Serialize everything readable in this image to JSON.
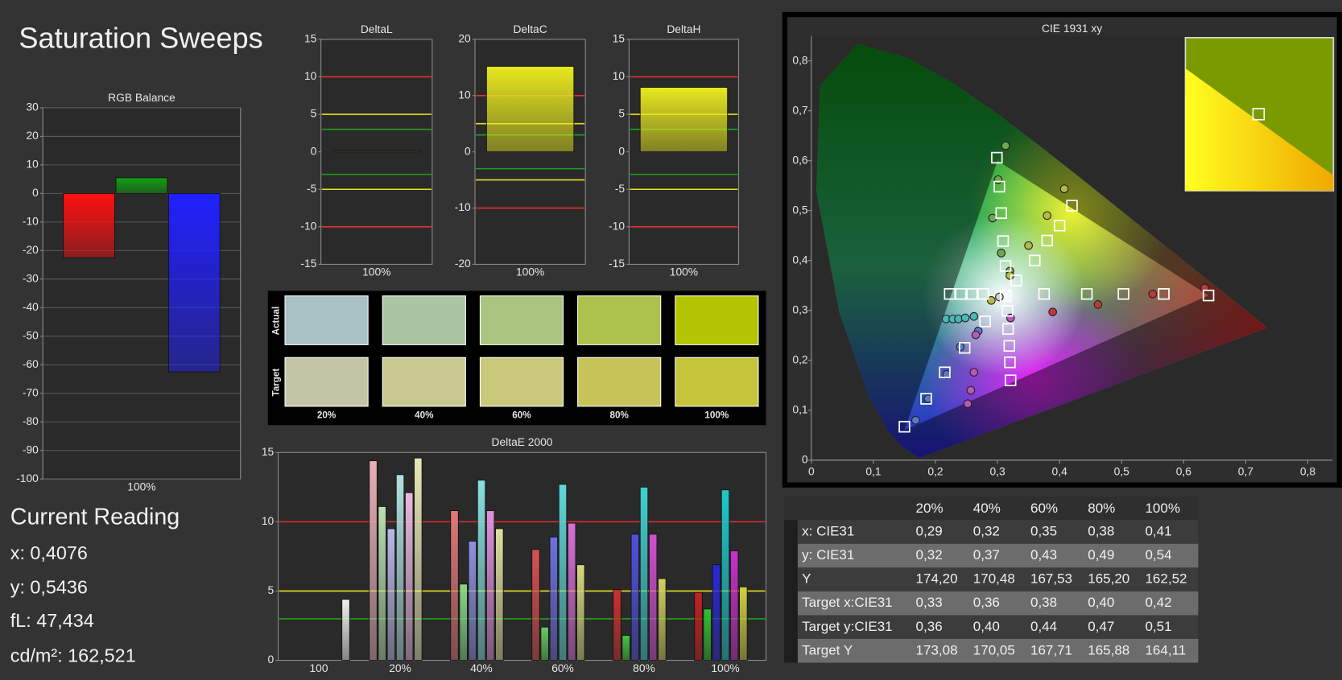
{
  "title": "Saturation Sweeps",
  "current_reading": {
    "title": "Current Reading",
    "lines": [
      "x: 0,4076",
      "y: 0,5436",
      "fL: 47,434",
      "cd/m²: 162,521"
    ]
  },
  "swatches": {
    "row_labels": [
      "Actual",
      "Target"
    ],
    "columns": [
      "20%",
      "40%",
      "60%",
      "80%",
      "100%"
    ],
    "actual_colors": [
      "#a9c0c4",
      "#a9c5a2",
      "#a9c47f",
      "#abc24c",
      "#b3c400"
    ],
    "target_colors": [
      "#c3c5a7",
      "#c9c991",
      "#c9c87b",
      "#c6c458",
      "#c6c43a"
    ]
  },
  "table": {
    "header": [
      "20%",
      "40%",
      "60%",
      "80%",
      "100%"
    ],
    "rows": [
      [
        "x: CIE31",
        "0,29",
        "0,32",
        "0,35",
        "0,38",
        "0,41"
      ],
      [
        "y: CIE31",
        "0,32",
        "0,37",
        "0,43",
        "0,49",
        "0,54"
      ],
      [
        "Y",
        "174,20",
        "170,48",
        "167,53",
        "165,20",
        "162,52"
      ],
      [
        "Target x:CIE31",
        "0,33",
        "0,36",
        "0,38",
        "0,40",
        "0,42"
      ],
      [
        "Target y:CIE31",
        "0,36",
        "0,40",
        "0,44",
        "0,47",
        "0,51"
      ],
      [
        "Target Y",
        "173,08",
        "170,05",
        "167,71",
        "165,88",
        "164,11"
      ]
    ]
  },
  "chart_data": [
    {
      "type": "bar",
      "title": "RGB Balance",
      "categories": [
        "100%"
      ],
      "series": [
        {
          "color": "#ff1010",
          "values": [
            -22.5
          ]
        },
        {
          "color": "#10a010",
          "values": [
            5.5
          ]
        },
        {
          "color": "#2020ff",
          "values": [
            -62.5
          ]
        }
      ],
      "ylim": [
        -100,
        30
      ],
      "yticks": [
        -100,
        -90,
        -80,
        -70,
        -60,
        -50,
        -40,
        -30,
        -20,
        -10,
        0,
        10,
        20,
        30
      ],
      "grid": true
    },
    {
      "type": "bar",
      "title": "DeltaL",
      "categories": [
        "100%"
      ],
      "values": [
        0.1
      ],
      "color": "#e8e820",
      "ylim": [
        -15,
        15
      ],
      "yticks": [
        -15,
        -10,
        -5,
        0,
        5,
        10,
        15
      ],
      "grid": false,
      "reference_lines": [
        {
          "value": 10,
          "color": "#e03030"
        },
        {
          "value": -10,
          "color": "#e03030"
        },
        {
          "value": 5,
          "color": "#e8e020"
        },
        {
          "value": -5,
          "color": "#e8e020"
        },
        {
          "value": 3,
          "color": "#20a020"
        },
        {
          "value": -3,
          "color": "#20a020"
        }
      ]
    },
    {
      "type": "bar",
      "title": "DeltaC",
      "categories": [
        "100%"
      ],
      "values": [
        15.2
      ],
      "color": "#e8e820",
      "ylim": [
        -20,
        20
      ],
      "yticks": [
        -20,
        -10,
        0,
        10,
        20
      ],
      "grid": false,
      "reference_lines": [
        {
          "value": 10,
          "color": "#e03030"
        },
        {
          "value": -10,
          "color": "#e03030"
        },
        {
          "value": 5,
          "color": "#e8e020"
        },
        {
          "value": -5,
          "color": "#e8e020"
        },
        {
          "value": 3,
          "color": "#20a020"
        },
        {
          "value": -3,
          "color": "#20a020"
        }
      ]
    },
    {
      "type": "bar",
      "title": "DeltaH",
      "categories": [
        "100%"
      ],
      "values": [
        8.6
      ],
      "color": "#e8e820",
      "ylim": [
        -15,
        15
      ],
      "yticks": [
        -15,
        -10,
        -5,
        0,
        5,
        10,
        15
      ],
      "grid": false,
      "reference_lines": [
        {
          "value": 10,
          "color": "#e03030"
        },
        {
          "value": -10,
          "color": "#e03030"
        },
        {
          "value": 5,
          "color": "#e8e020"
        },
        {
          "value": -5,
          "color": "#e8e020"
        },
        {
          "value": 3,
          "color": "#20a020"
        },
        {
          "value": -3,
          "color": "#20a020"
        }
      ]
    },
    {
      "type": "bar",
      "title": "DeltaE 2000",
      "categories": [
        "100",
        "20%",
        "40%",
        "60%",
        "80%",
        "100%"
      ],
      "series": [
        {
          "colors": [
            null,
            "#e8b0b6",
            "#e07878",
            "#d85050",
            "#d03030",
            "#c82020"
          ],
          "values": [
            null,
            14.4,
            10.8,
            8.0,
            5.1,
            4.9
          ]
        },
        {
          "colors": [
            null,
            "#b8e0b0",
            "#88d888",
            "#60d060",
            "#40c840",
            "#30c030"
          ],
          "values": [
            null,
            11.1,
            5.5,
            2.4,
            1.8,
            3.7
          ]
        },
        {
          "colors": [
            null,
            "#b8b8e8",
            "#9090e0",
            "#7070e0",
            "#5050e0",
            "#2828d8"
          ],
          "values": [
            null,
            9.5,
            8.6,
            8.9,
            9.1,
            6.9
          ]
        },
        {
          "colors": [
            null,
            "#b0e0e0",
            "#88e0e0",
            "#60d8d8",
            "#40d0d0",
            "#20c8c8"
          ],
          "values": [
            null,
            13.4,
            13.0,
            12.7,
            12.5,
            12.3
          ]
        },
        {
          "colors": [
            null,
            "#e8b8e0",
            "#e090e0",
            "#d870d8",
            "#d050d0",
            "#c830c8"
          ],
          "values": [
            null,
            12.1,
            10.8,
            9.9,
            9.1,
            7.9
          ]
        },
        {
          "colors": [
            null,
            "#e8e8b8",
            "#e0e0a0",
            "#d8d880",
            "#d0d060",
            "#d0d040"
          ],
          "values": [
            null,
            14.6,
            9.5,
            6.9,
            5.9,
            5.3
          ]
        },
        {
          "colors": [
            "#f0f0f0",
            null,
            null,
            null,
            null,
            null
          ],
          "values": [
            4.4,
            null,
            null,
            null,
            null,
            null
          ]
        }
      ],
      "ylim": [
        0,
        15
      ],
      "yticks": [
        0,
        5,
        10,
        15
      ],
      "grid": false,
      "reference_lines": [
        {
          "value": 10,
          "color": "#e03030"
        },
        {
          "value": 5,
          "color": "#e8e020"
        },
        {
          "value": 3,
          "color": "#20a020"
        }
      ]
    },
    {
      "type": "scatter",
      "title": "CIE 1931 xy",
      "xlim": [
        0,
        0.84
      ],
      "ylim": [
        0,
        0.85
      ],
      "xticks": [
        0,
        {
          "value": 0.1,
          "label": "0,1"
        },
        {
          "value": 0.2,
          "label": "0,2"
        },
        {
          "value": 0.3,
          "label": "0,3"
        },
        {
          "value": 0.4,
          "label": "0,4"
        },
        {
          "value": 0.5,
          "label": "0,5"
        },
        {
          "value": 0.6,
          "label": "0,6"
        },
        {
          "value": 0.7,
          "label": "0,7"
        },
        {
          "value": 0.8,
          "label": "0,8"
        }
      ],
      "yticks": [
        0,
        {
          "value": 0.1,
          "label": "0,1"
        },
        {
          "value": 0.2,
          "label": "0,2"
        },
        {
          "value": 0.3,
          "label": "0,3"
        },
        {
          "value": 0.4,
          "label": "0,4"
        },
        {
          "value": 0.5,
          "label": "0,5"
        },
        {
          "value": 0.6,
          "label": "0,6"
        },
        {
          "value": 0.7,
          "label": "0,7"
        },
        {
          "value": 0.8,
          "label": "0,8"
        }
      ],
      "series": [
        {
          "marker": "circle",
          "color": "#c03838",
          "x": [
            0.389,
            0.462,
            0.55,
            0.634
          ],
          "y": [
            0.297,
            0.312,
            0.333,
            0.345
          ]
        },
        {
          "marker": "circle",
          "color": "#70a850",
          "x": [
            0.32,
            0.306,
            0.292,
            0.301,
            0.313
          ],
          "y": [
            0.379,
            0.415,
            0.485,
            0.562,
            0.63
          ]
        },
        {
          "marker": "circle",
          "color": "#5878c8",
          "x": [
            0.269,
            0.24,
            0.218,
            0.188,
            0.168
          ],
          "y": [
            0.259,
            0.227,
            0.172,
            0.123,
            0.08
          ]
        },
        {
          "marker": "circle",
          "color": "#48b8b8",
          "x": [
            0.217,
            0.228,
            0.237,
            0.248,
            0.262
          ],
          "y": [
            0.283,
            0.283,
            0.283,
            0.285,
            0.288
          ]
        },
        {
          "marker": "circle",
          "color": "#b858b8",
          "x": [
            0.321,
            0.265,
            0.262,
            0.257,
            0.252
          ],
          "y": [
            0.285,
            0.251,
            0.176,
            0.14,
            0.113
          ]
        },
        {
          "marker": "circle",
          "color": "#b8b848",
          "x": [
            0.29,
            0.32,
            0.35,
            0.38,
            0.4076
          ],
          "y": [
            0.32,
            0.37,
            0.43,
            0.49,
            0.5436
          ]
        },
        {
          "marker": "circle",
          "color": "#d0d0d0",
          "x": [
            0.303
          ],
          "y": [
            0.327
          ]
        },
        {
          "marker": "square",
          "color": "#ffffff",
          "x": [
            0.313,
            0.375,
            0.444,
            0.503,
            0.568,
            0.64,
            0.313,
            0.309,
            0.306,
            0.303,
            0.299,
            0.28,
            0.247,
            0.215,
            0.185,
            0.15,
            0.223,
            0.241,
            0.259,
            0.277,
            0.316,
            0.317,
            0.319,
            0.32,
            0.321,
            0.33,
            0.36,
            0.38,
            0.4,
            0.42
          ],
          "y": [
            0.329,
            0.333,
            0.333,
            0.333,
            0.333,
            0.33,
            0.389,
            0.439,
            0.495,
            0.548,
            0.606,
            0.278,
            0.225,
            0.176,
            0.123,
            0.067,
            0.333,
            0.333,
            0.333,
            0.333,
            0.299,
            0.263,
            0.229,
            0.196,
            0.16,
            0.36,
            0.4,
            0.44,
            0.47,
            0.51
          ]
        }
      ]
    }
  ]
}
